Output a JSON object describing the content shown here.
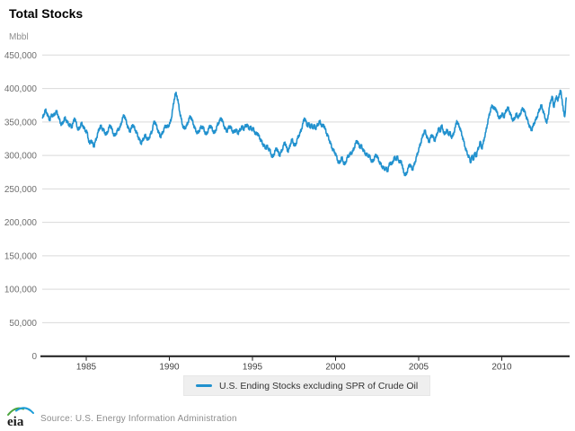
{
  "header": {
    "title": "Total Stocks"
  },
  "footer": {
    "logo_text": "eia",
    "source": "Source: U.S. Energy Information Administration"
  },
  "legend": {
    "label": "U.S. Ending Stocks excluding SPR of Crude Oil"
  },
  "colors": {
    "line": "#2191CE",
    "grid": "#d9d9d9",
    "axis": "#1a1a1a",
    "y_tick_text": "#6e6e6e",
    "x_tick_text": "#444444",
    "logo_green": "#4DA53F",
    "logo_blue": "#1B9CD8"
  },
  "chart_data": {
    "type": "line",
    "title": "Total Stocks",
    "ylabel": "Mbbl",
    "unit_label": "Mbbl",
    "ylim": [
      0,
      450000
    ],
    "y_tick_step": 50000,
    "y_tick_labels": [
      "450,000",
      "400,000",
      "350,000",
      "300,000",
      "250,000",
      "200,000",
      "150,000",
      "100,000",
      "50,000",
      "0"
    ],
    "x_tick_years": [
      1985,
      1990,
      1995,
      2000,
      2005,
      2010
    ],
    "grid": true,
    "legend_position": "bottom",
    "series": [
      {
        "name": "U.S. Ending Stocks excluding SPR of Crude Oil",
        "color": "#2191CE",
        "unit": "Mbbl",
        "start_year": 1982.375,
        "points_per_year": 12,
        "values": [
          356000,
          362000,
          368000,
          364000,
          358000,
          353000,
          358000,
          361000,
          359000,
          363000,
          366000,
          361000,
          354000,
          348000,
          346000,
          351000,
          356000,
          353000,
          349000,
          346000,
          345000,
          342000,
          348000,
          356000,
          350000,
          342000,
          338000,
          343000,
          348000,
          345000,
          340000,
          337000,
          335000,
          325000,
          317000,
          323000,
          318000,
          313000,
          320000,
          327000,
          334000,
          341000,
          344000,
          340000,
          338000,
          334000,
          331000,
          336000,
          342000,
          345000,
          339000,
          333000,
          329000,
          333000,
          337000,
          340000,
          342000,
          350000,
          357000,
          360000,
          353000,
          346000,
          340000,
          336000,
          340000,
          346000,
          342000,
          338000,
          333000,
          328000,
          323000,
          318000,
          321000,
          326000,
          330000,
          327000,
          323000,
          327000,
          332000,
          336000,
          347000,
          351000,
          345000,
          339000,
          333000,
          328000,
          331000,
          336000,
          341000,
          345000,
          342000,
          345000,
          348000,
          356000,
          370000,
          384000,
          393000,
          389000,
          378000,
          365000,
          355000,
          346000,
          340000,
          342000,
          344000,
          350000,
          356000,
          358000,
          352000,
          346000,
          340000,
          336000,
          333000,
          337000,
          341000,
          343000,
          341000,
          336000,
          331000,
          335000,
          340000,
          345000,
          341000,
          337000,
          333000,
          338000,
          344000,
          349000,
          352000,
          356000,
          350000,
          344000,
          339000,
          336000,
          340000,
          344000,
          341000,
          337000,
          334000,
          338000,
          337000,
          333000,
          336000,
          340000,
          343000,
          339000,
          342000,
          346000,
          344000,
          340000,
          342000,
          339000,
          340000,
          336000,
          331000,
          334000,
          329000,
          325000,
          321000,
          317000,
          314000,
          311000,
          314000,
          310000,
          308000,
          302000,
          297000,
          302000,
          307000,
          311000,
          305000,
          300000,
          304000,
          309000,
          315000,
          320000,
          312000,
          306000,
          310000,
          318000,
          324000,
          319000,
          314000,
          318000,
          325000,
          330000,
          334000,
          340000,
          348000,
          356000,
          351000,
          344000,
          348000,
          342000,
          346000,
          341000,
          345000,
          340000,
          344000,
          347000,
          351000,
          347000,
          343000,
          346000,
          339000,
          333000,
          329000,
          323000,
          317000,
          311000,
          307000,
          305000,
          299000,
          293000,
          288000,
          292000,
          297000,
          291000,
          286000,
          291000,
          297000,
          300000,
          302000,
          304000,
          306000,
          312000,
          318000,
          322000,
          317000,
          312000,
          315000,
          310000,
          306000,
          303000,
          301000,
          300000,
          299000,
          294000,
          290000,
          294000,
          298000,
          301000,
          296000,
          291000,
          287000,
          284000,
          281000,
          280000,
          281000,
          276000,
          284000,
          290000,
          286000,
          292000,
          297000,
          294000,
          298000,
          293000,
          289000,
          292000,
          280000,
          274000,
          270000,
          275000,
          281000,
          287000,
          283000,
          279000,
          284000,
          291000,
          298000,
          305000,
          312000,
          319000,
          326000,
          333000,
          337000,
          331000,
          325000,
          320000,
          326000,
          331000,
          327000,
          322000,
          327000,
          334000,
          341000,
          335000,
          345000,
          339000,
          331000,
          335000,
          338000,
          331000,
          335000,
          328000,
          328000,
          335000,
          342000,
          352000,
          346000,
          343000,
          336000,
          329000,
          321000,
          313000,
          306000,
          301000,
          297000,
          289000,
          300000,
          293000,
          304000,
          298000,
          307000,
          313000,
          321000,
          310000,
          317000,
          327000,
          335000,
          346000,
          356000,
          365000,
          372000,
          374000,
          369000,
          371000,
          364000,
          359000,
          355000,
          360000,
          362000,
          357000,
          363000,
          369000,
          371000,
          366000,
          360000,
          355000,
          352000,
          357000,
          362000,
          358000,
          358000,
          363000,
          368000,
          370000,
          365000,
          359000,
          353000,
          347000,
          341000,
          338000,
          343000,
          349000,
          353000,
          358000,
          364000,
          370000,
          375000,
          369000,
          362000,
          355000,
          348000,
          360000,
          373000,
          383000,
          388000,
          372000,
          380000,
          389000,
          381000,
          392000,
          397000,
          384000,
          366000,
          358000,
          386000
        ]
      }
    ]
  }
}
